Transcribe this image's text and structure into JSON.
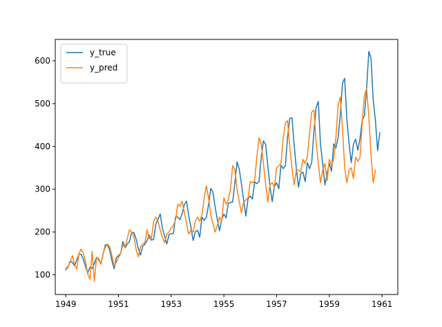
{
  "chart_data": {
    "type": "line",
    "title": "",
    "xlabel": "",
    "ylabel": "",
    "x_start": 1949,
    "x_step": 0.0833333,
    "xlim": [
      1948.6,
      1961.6
    ],
    "ylim": [
      54,
      650
    ],
    "xticks": [
      1949,
      1951,
      1953,
      1955,
      1957,
      1959,
      1961
    ],
    "yticks": [
      100,
      200,
      300,
      400,
      500,
      600
    ],
    "grid": false,
    "legend_position": "top-left",
    "series": [
      {
        "name": "y_true",
        "color": "#1f77b4",
        "values": [
          112,
          118,
          132,
          129,
          121,
          135,
          148,
          148,
          136,
          119,
          104,
          118,
          115,
          126,
          141,
          135,
          125,
          149,
          170,
          170,
          158,
          133,
          114,
          140,
          145,
          150,
          178,
          163,
          172,
          178,
          199,
          199,
          184,
          162,
          146,
          166,
          171,
          180,
          193,
          181,
          183,
          218,
          230,
          242,
          209,
          191,
          172,
          194,
          196,
          196,
          236,
          235,
          229,
          243,
          264,
          272,
          237,
          211,
          180,
          201,
          204,
          188,
          235,
          227,
          234,
          264,
          302,
          293,
          259,
          229,
          203,
          229,
          242,
          233,
          267,
          269,
          270,
          315,
          364,
          347,
          312,
          274,
          237,
          278,
          284,
          277,
          317,
          313,
          318,
          374,
          413,
          405,
          355,
          306,
          271,
          306,
          315,
          301,
          356,
          348,
          355,
          422,
          465,
          467,
          404,
          347,
          305,
          336,
          340,
          318,
          362,
          348,
          363,
          435,
          491,
          505,
          404,
          359,
          310,
          337,
          360,
          342,
          406,
          396,
          420,
          472,
          548,
          559,
          463,
          407,
          362,
          405,
          417,
          391,
          419,
          461,
          472,
          535,
          622,
          606,
          508,
          461,
          390,
          432
        ]
      },
      {
        "name": "y_pred",
        "color": "#ff7f0e",
        "values": [
          114,
          120,
          129,
          145,
          124,
          113,
          150,
          160,
          150,
          130,
          102,
          90,
          155,
          85,
          140,
          138,
          125,
          150,
          165,
          172,
          165,
          145,
          120,
          130,
          140,
          150,
          170,
          165,
          185,
          205,
          200,
          190,
          160,
          142,
          165,
          172,
          175,
          205,
          185,
          185,
          225,
          235,
          225,
          205,
          188,
          175,
          195,
          200,
          210,
          215,
          228,
          265,
          260,
          272,
          245,
          220,
          195,
          205,
          200,
          225,
          235,
          225,
          240,
          278,
          308,
          280,
          240,
          220,
          200,
          215,
          235,
          225,
          280,
          265,
          275,
          300,
          355,
          345,
          300,
          270,
          245,
          270,
          275,
          280,
          318,
          315,
          320,
          375,
          420,
          405,
          360,
          312,
          270,
          310,
          315,
          305,
          350,
          355,
          360,
          418,
          455,
          460,
          400,
          350,
          310,
          345,
          345,
          340,
          370,
          360,
          375,
          430,
          480,
          485,
          410,
          360,
          315,
          345,
          360,
          320,
          370,
          355,
          370,
          420,
          495,
          515,
          445,
          350,
          315,
          345,
          350,
          325,
          375,
          365,
          375,
          455,
          520,
          535,
          470,
          380,
          315,
          345
        ]
      }
    ]
  }
}
